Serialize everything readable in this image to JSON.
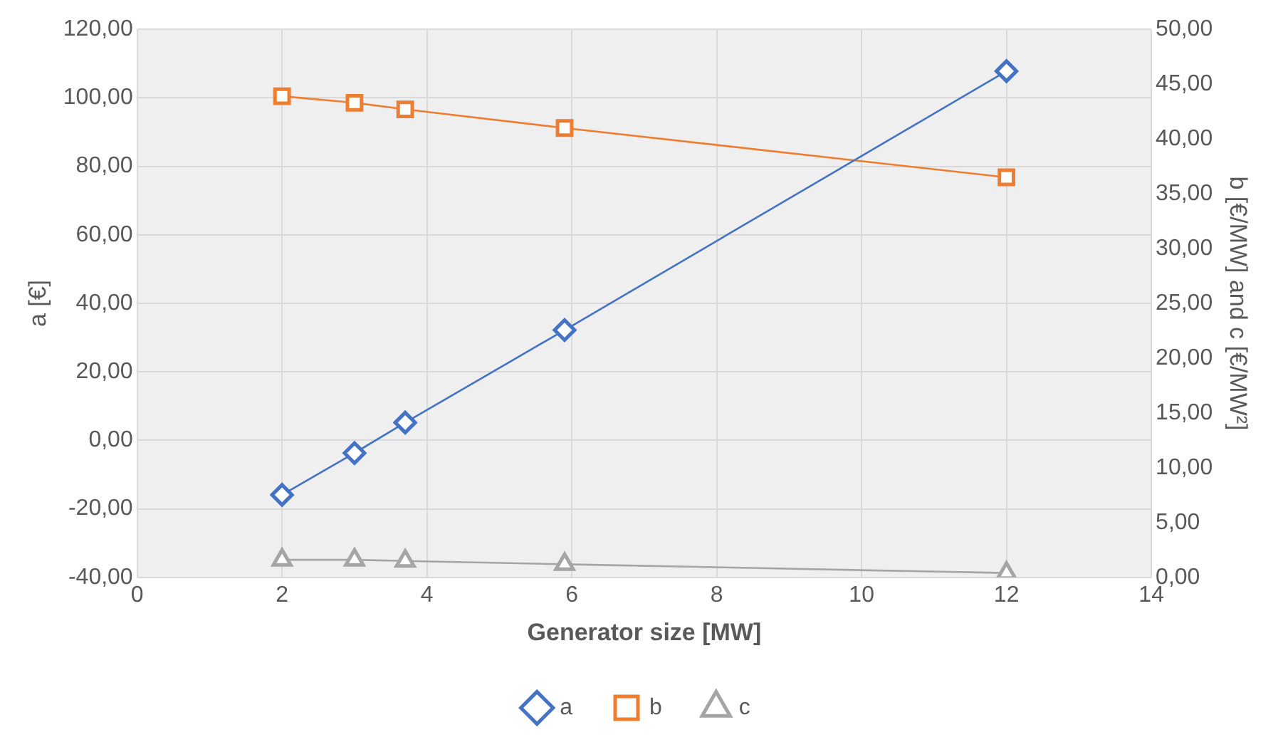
{
  "chart_data": {
    "type": "line",
    "xlabel": "Generator size [MW]",
    "ylabel": "a [€]",
    "y2label": "b [€/MW] and c [€/MW²]",
    "x": [
      2,
      3,
      3.7,
      5.9,
      12
    ],
    "series": [
      {
        "name": "a",
        "color": "#4472c4",
        "marker": "diamond",
        "values": [
          -15.9,
          -3.7,
          5.2,
          32.2,
          107.8
        ]
      },
      {
        "name": "b",
        "color": "#ed7d31",
        "marker": "square",
        "axis": "y2",
        "values": [
          43.9,
          43.3,
          42.7,
          41.0,
          36.5
        ]
      },
      {
        "name": "c",
        "color": "#a5a5a5",
        "marker": "triangle",
        "axis": "y2",
        "values": [
          1.6,
          1.6,
          1.5,
          1.2,
          0.4
        ]
      }
    ],
    "xlim": [
      0,
      14
    ],
    "xticks": [
      0,
      2,
      4,
      6,
      8,
      10,
      12,
      14
    ],
    "ylim": [
      -40,
      120
    ],
    "yticks": [
      {
        "value": -40,
        "label": "-40,00"
      },
      {
        "value": -20,
        "label": "-20,00"
      },
      {
        "value": 0,
        "label": "0,00"
      },
      {
        "value": 20,
        "label": "20,00"
      },
      {
        "value": 40,
        "label": "40,00"
      },
      {
        "value": 60,
        "label": "60,00"
      },
      {
        "value": 80,
        "label": "80,00"
      },
      {
        "value": 100,
        "label": "100,00"
      },
      {
        "value": 120,
        "label": "120,00"
      }
    ],
    "y2lim": [
      0,
      50
    ],
    "y2ticks": [
      {
        "value": 0,
        "label": "0,00"
      },
      {
        "value": 5,
        "label": "5,00"
      },
      {
        "value": 10,
        "label": "10,00"
      },
      {
        "value": 15,
        "label": "15,00"
      },
      {
        "value": 20,
        "label": "20,00"
      },
      {
        "value": 25,
        "label": "25,00"
      },
      {
        "value": 30,
        "label": "30,00"
      },
      {
        "value": 35,
        "label": "35,00"
      },
      {
        "value": 40,
        "label": "40,00"
      },
      {
        "value": 45,
        "label": "45,00"
      },
      {
        "value": 50,
        "label": "50,00"
      }
    ],
    "grid": true,
    "legend": "bottom",
    "line_style": "solid"
  }
}
